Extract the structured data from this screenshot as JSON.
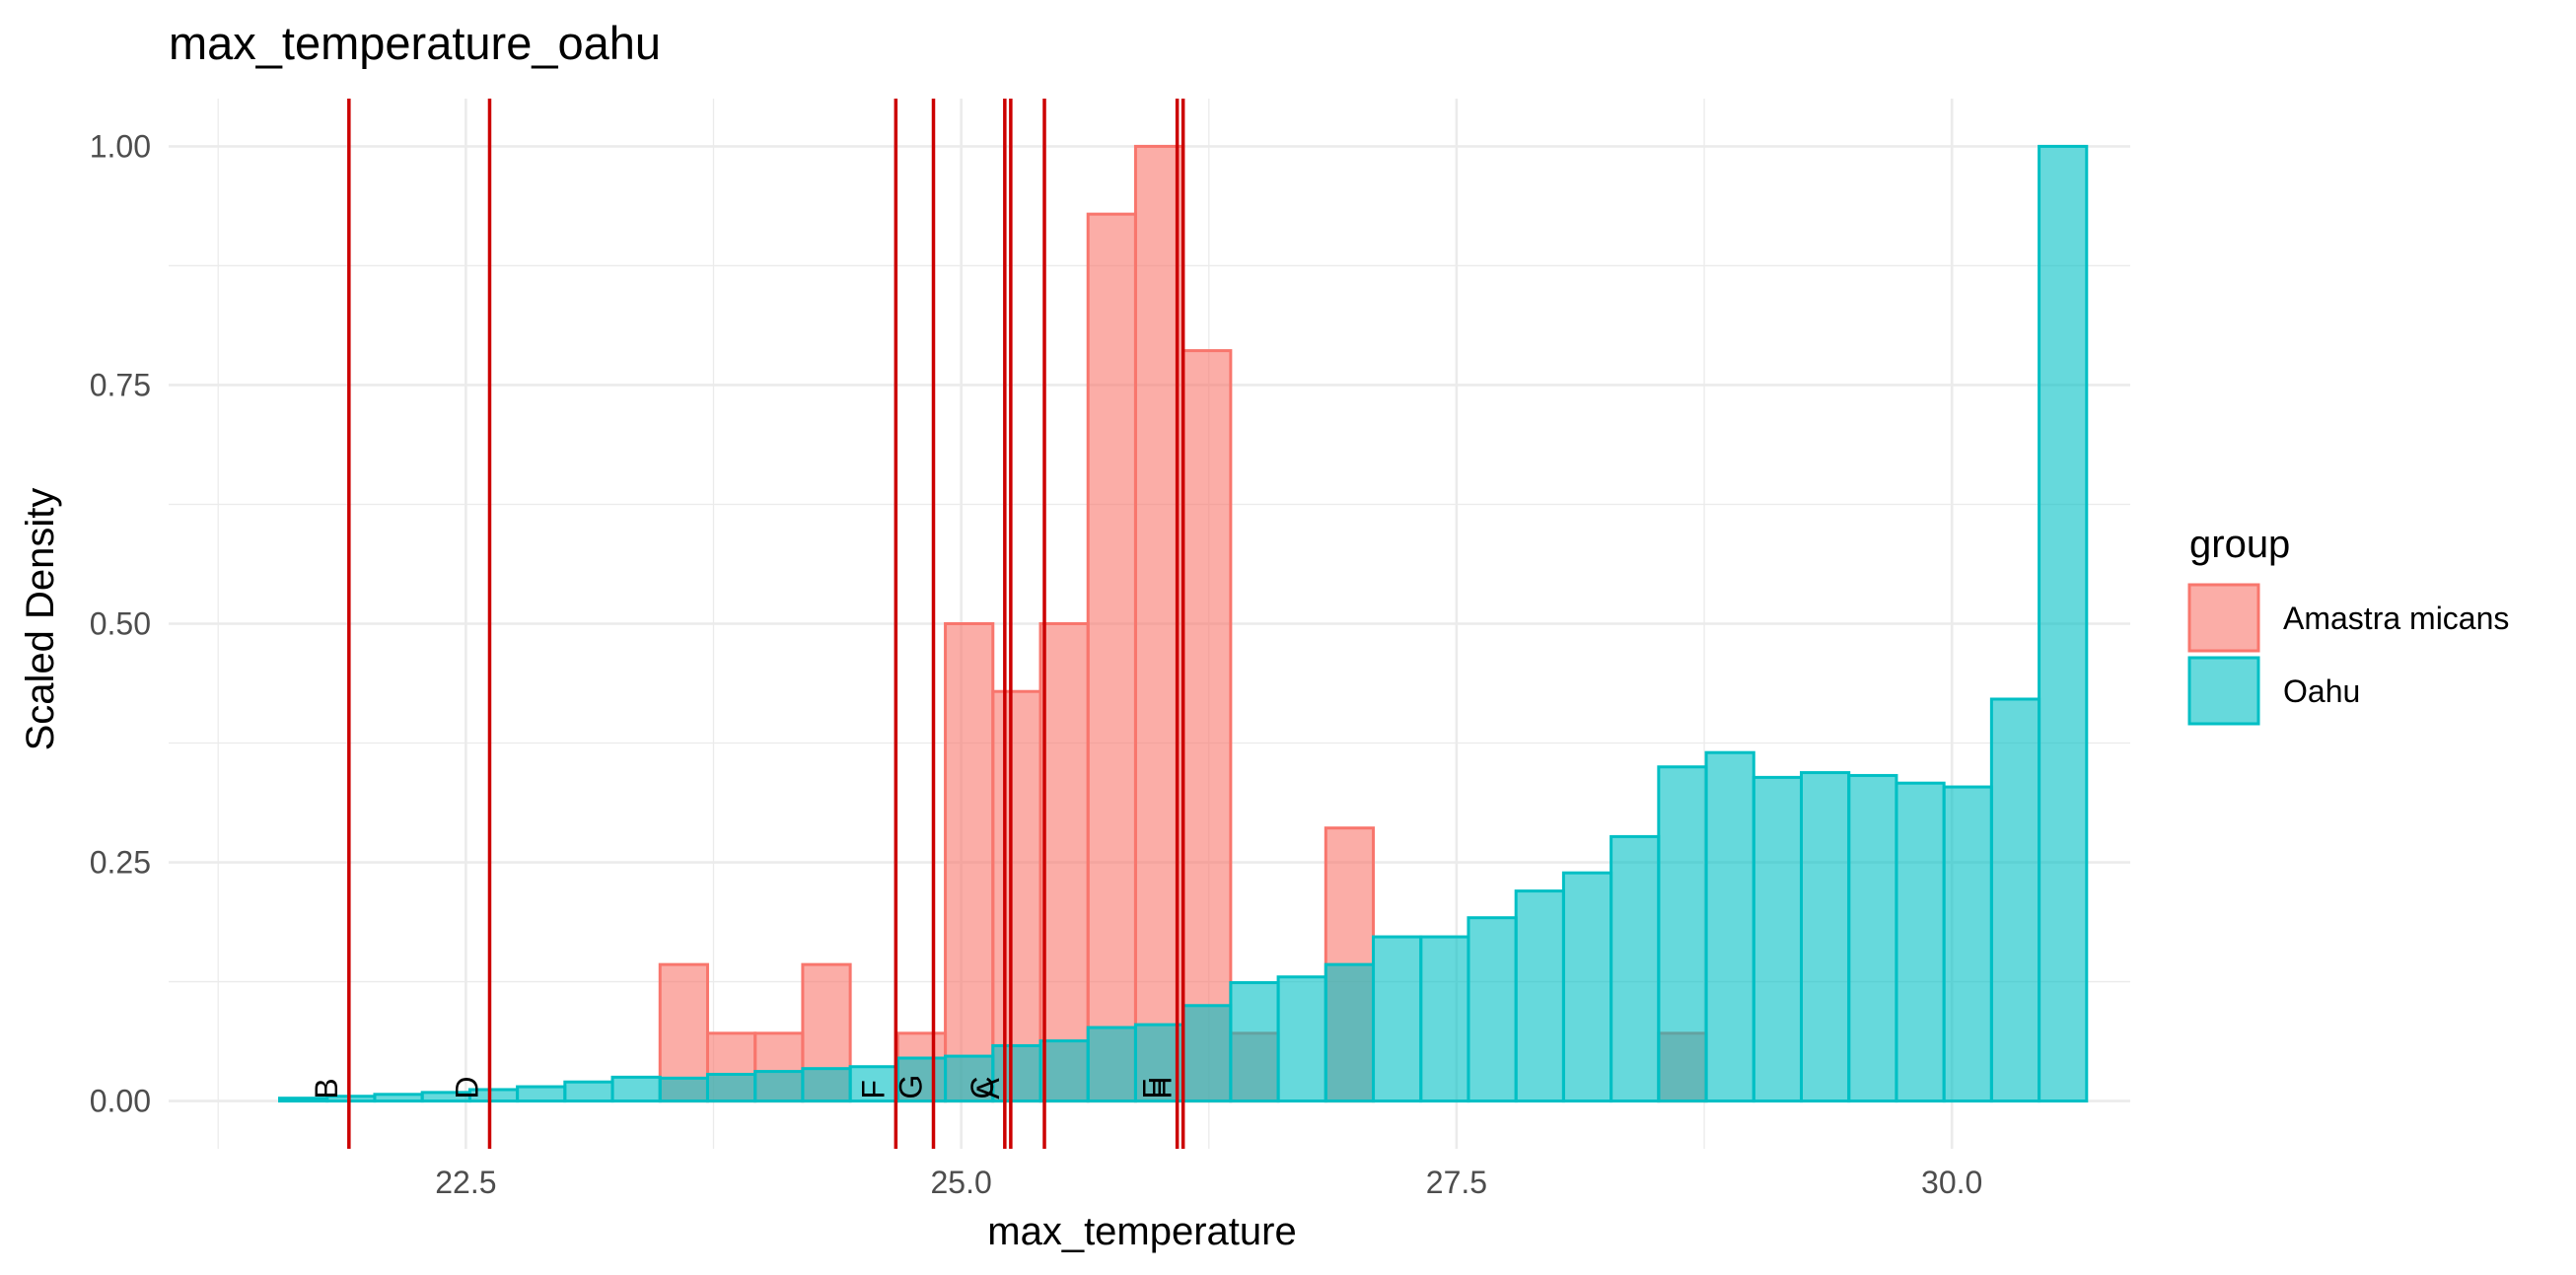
{
  "chart_data": {
    "type": "bar",
    "title": "max_temperature_oahu",
    "xlabel": "max_temperature",
    "ylabel": "Scaled Density",
    "xlim": [
      21.0,
      30.9
    ],
    "ylim": [
      -0.05,
      1.05
    ],
    "x_ticks": [
      22.5,
      25.0,
      27.5,
      30.0
    ],
    "x_tick_labels": [
      "22.5",
      "25.0",
      "27.5",
      "30.0"
    ],
    "y_ticks": [
      0.0,
      0.25,
      0.5,
      0.75,
      1.0
    ],
    "y_tick_labels": [
      "0.00",
      "0.25",
      "0.50",
      "0.75",
      "1.00"
    ],
    "grid": true,
    "legend": {
      "title": "group",
      "placement": "right",
      "entries": [
        {
          "label": "Amastra micans",
          "fill": "#F8766D",
          "stroke": "#F8766D"
        },
        {
          "label": "Oahu",
          "fill": "#00BFC4",
          "stroke": "#00BFC4"
        }
      ]
    },
    "bin_width": 0.24,
    "series": [
      {
        "name": "Amastra micans",
        "color": "#F8766D",
        "fill_opacity": 0.6,
        "bins": [
          {
            "x0": 23.48,
            "x1": 23.72,
            "value": 0.143
          },
          {
            "x0": 23.72,
            "x1": 23.96,
            "value": 0.071
          },
          {
            "x0": 23.96,
            "x1": 24.2,
            "value": 0.071
          },
          {
            "x0": 24.2,
            "x1": 24.44,
            "value": 0.143
          },
          {
            "x0": 24.68,
            "x1": 24.92,
            "value": 0.071
          },
          {
            "x0": 24.92,
            "x1": 25.16,
            "value": 0.5
          },
          {
            "x0": 25.16,
            "x1": 25.4,
            "value": 0.429
          },
          {
            "x0": 25.4,
            "x1": 25.64,
            "value": 0.5
          },
          {
            "x0": 25.64,
            "x1": 25.88,
            "value": 0.929
          },
          {
            "x0": 25.88,
            "x1": 26.12,
            "value": 1.0
          },
          {
            "x0": 26.12,
            "x1": 26.36,
            "value": 0.786
          },
          {
            "x0": 26.36,
            "x1": 26.6,
            "value": 0.071
          },
          {
            "x0": 26.84,
            "x1": 27.08,
            "value": 0.286
          },
          {
            "x0": 28.52,
            "x1": 28.76,
            "value": 0.071
          }
        ]
      },
      {
        "name": "Oahu",
        "color": "#00BFC4",
        "fill_opacity": 0.6,
        "bins": [
          {
            "x0": 21.56,
            "x1": 21.8,
            "value": 0.003
          },
          {
            "x0": 21.8,
            "x1": 22.04,
            "value": 0.005
          },
          {
            "x0": 22.04,
            "x1": 22.28,
            "value": 0.007
          },
          {
            "x0": 22.28,
            "x1": 22.52,
            "value": 0.009
          },
          {
            "x0": 22.52,
            "x1": 22.76,
            "value": 0.012
          },
          {
            "x0": 22.76,
            "x1": 23.0,
            "value": 0.015
          },
          {
            "x0": 23.0,
            "x1": 23.24,
            "value": 0.02
          },
          {
            "x0": 23.24,
            "x1": 23.48,
            "value": 0.025
          },
          {
            "x0": 23.48,
            "x1": 23.72,
            "value": 0.024
          },
          {
            "x0": 23.72,
            "x1": 23.96,
            "value": 0.028
          },
          {
            "x0": 23.96,
            "x1": 24.2,
            "value": 0.031
          },
          {
            "x0": 24.2,
            "x1": 24.44,
            "value": 0.034
          },
          {
            "x0": 24.44,
            "x1": 24.68,
            "value": 0.036
          },
          {
            "x0": 24.68,
            "x1": 24.92,
            "value": 0.045
          },
          {
            "x0": 24.92,
            "x1": 25.16,
            "value": 0.047
          },
          {
            "x0": 25.16,
            "x1": 25.4,
            "value": 0.058
          },
          {
            "x0": 25.4,
            "x1": 25.64,
            "value": 0.063
          },
          {
            "x0": 25.64,
            "x1": 25.88,
            "value": 0.077
          },
          {
            "x0": 25.88,
            "x1": 26.12,
            "value": 0.08
          },
          {
            "x0": 26.12,
            "x1": 26.36,
            "value": 0.1
          },
          {
            "x0": 26.36,
            "x1": 26.6,
            "value": 0.124
          },
          {
            "x0": 26.6,
            "x1": 26.84,
            "value": 0.13
          },
          {
            "x0": 26.84,
            "x1": 27.08,
            "value": 0.143
          },
          {
            "x0": 27.08,
            "x1": 27.32,
            "value": 0.172
          },
          {
            "x0": 27.32,
            "x1": 27.56,
            "value": 0.172
          },
          {
            "x0": 27.56,
            "x1": 27.8,
            "value": 0.192
          },
          {
            "x0": 27.8,
            "x1": 28.04,
            "value": 0.22
          },
          {
            "x0": 28.04,
            "x1": 28.28,
            "value": 0.239
          },
          {
            "x0": 28.28,
            "x1": 28.52,
            "value": 0.277
          },
          {
            "x0": 28.52,
            "x1": 28.76,
            "value": 0.35
          },
          {
            "x0": 28.76,
            "x1": 29.0,
            "value": 0.365
          },
          {
            "x0": 29.0,
            "x1": 29.24,
            "value": 0.339
          },
          {
            "x0": 29.24,
            "x1": 29.48,
            "value": 0.344
          },
          {
            "x0": 29.48,
            "x1": 29.72,
            "value": 0.341
          },
          {
            "x0": 29.72,
            "x1": 29.96,
            "value": 0.333
          },
          {
            "x0": 29.96,
            "x1": 30.2,
            "value": 0.329
          },
          {
            "x0": 30.2,
            "x1": 30.44,
            "value": 0.421
          },
          {
            "x0": 30.44,
            "x1": 30.68,
            "value": 1.0
          }
        ]
      }
    ],
    "reference_lines": {
      "color": "#CC0000",
      "lines": [
        {
          "label": "B",
          "x": 21.91
        },
        {
          "label": "D",
          "x": 22.62
        },
        {
          "label": "F",
          "x": 24.67
        },
        {
          "label": "G",
          "x": 24.86
        },
        {
          "label": "C",
          "x": 25.22
        },
        {
          "label": "A",
          "x": 25.25
        },
        {
          "label": "",
          "x": 25.42
        },
        {
          "label": "E",
          "x": 26.09
        },
        {
          "label": "H",
          "x": 26.12
        }
      ]
    }
  }
}
